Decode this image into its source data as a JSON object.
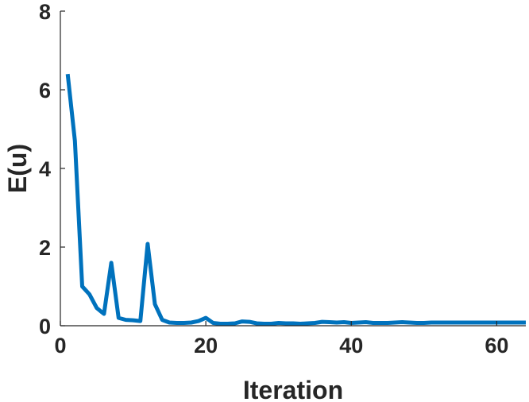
{
  "chart_data": {
    "type": "line",
    "title": "",
    "xlabel": "Iteration",
    "ylabel": "E(u)",
    "xlim": [
      0,
      64
    ],
    "ylim": [
      0,
      8
    ],
    "xticks": [
      0,
      20,
      40,
      60
    ],
    "yticks": [
      0,
      2,
      4,
      6,
      8
    ],
    "grid": false,
    "color": "#0072BD",
    "series": [
      {
        "x": [
          1,
          2,
          3,
          4,
          5,
          6,
          7,
          8,
          9,
          10,
          11,
          12,
          13,
          14,
          15,
          16,
          17,
          18,
          19,
          20,
          21,
          22,
          23,
          24,
          25,
          26,
          27,
          28,
          29,
          30,
          31,
          32,
          33,
          34,
          35,
          36,
          37,
          38,
          39,
          40,
          41,
          42,
          43,
          44,
          45,
          46,
          47,
          48,
          49,
          50,
          51,
          52,
          53,
          54,
          55,
          56,
          57,
          58,
          59,
          60,
          61,
          62,
          63,
          64
        ],
        "values": [
          6.4,
          4.7,
          1.0,
          0.8,
          0.45,
          0.3,
          1.6,
          0.2,
          0.15,
          0.14,
          0.12,
          2.08,
          0.55,
          0.15,
          0.08,
          0.07,
          0.07,
          0.08,
          0.12,
          0.2,
          0.07,
          0.05,
          0.05,
          0.06,
          0.11,
          0.1,
          0.06,
          0.05,
          0.05,
          0.07,
          0.06,
          0.06,
          0.05,
          0.06,
          0.07,
          0.1,
          0.09,
          0.08,
          0.09,
          0.07,
          0.08,
          0.09,
          0.07,
          0.07,
          0.07,
          0.08,
          0.09,
          0.08,
          0.07,
          0.07,
          0.08,
          0.08,
          0.08,
          0.08,
          0.08,
          0.08,
          0.08,
          0.08,
          0.08,
          0.08,
          0.08,
          0.08,
          0.08,
          0.08
        ]
      }
    ]
  }
}
